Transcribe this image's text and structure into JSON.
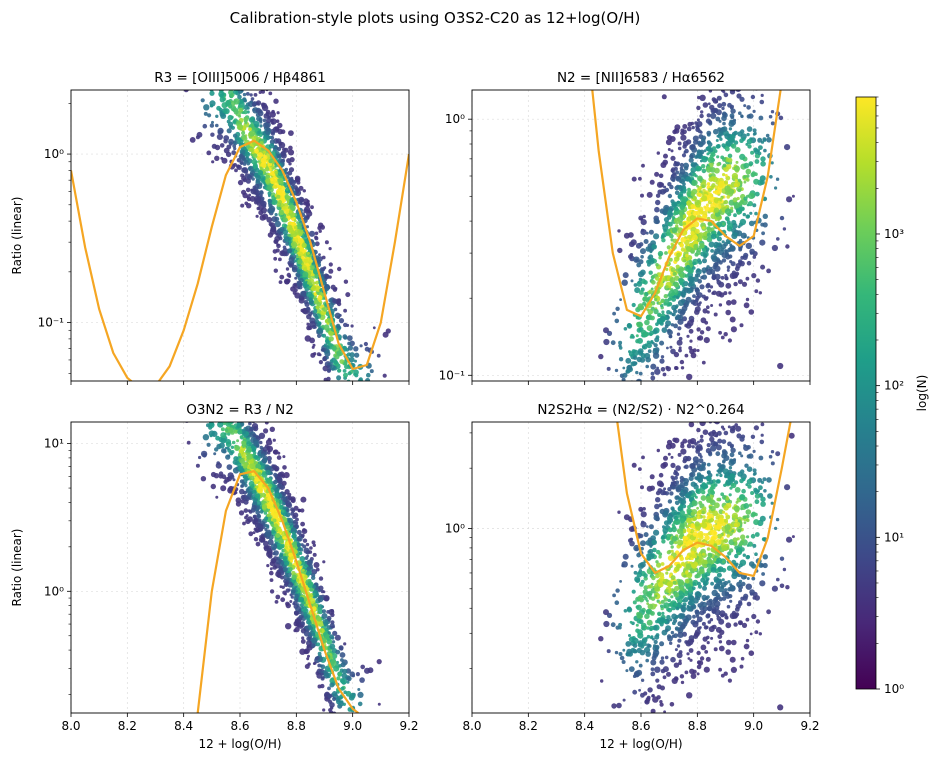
{
  "figure": {
    "title": "Calibration-style plots using O3S2-C20 as 12+log(O/H)"
  },
  "colors": {
    "fit_curve": "#f5a623",
    "grid": "#dddddd",
    "viridis": [
      "#440154",
      "#482878",
      "#3e4989",
      "#31688e",
      "#26828e",
      "#1f9e89",
      "#35b779",
      "#6ece58",
      "#b5de2b",
      "#fde725"
    ]
  },
  "colorbar": {
    "label": "log(N)",
    "scale": "log",
    "range": [
      1,
      8000
    ],
    "ticks": [
      {
        "v": 1,
        "label": "10⁰"
      },
      {
        "v": 10,
        "label": "10¹"
      },
      {
        "v": 100,
        "label": "10²"
      },
      {
        "v": 1000,
        "label": "10³"
      }
    ]
  },
  "chart_data": [
    {
      "type": "heatmap",
      "title": "R3 = [OIII]5006 / Hβ4861",
      "xlabel": "",
      "ylabel": "Ratio (linear)",
      "xlim": [
        8.0,
        9.2
      ],
      "ylim": [
        0.045,
        2.4
      ],
      "yscale": "log",
      "grid": true,
      "xticks": [],
      "yticks": [
        {
          "v": 0.1,
          "label": "10⁻¹"
        },
        {
          "v": 1,
          "label": "10⁰"
        }
      ],
      "fit_curve": {
        "x": [
          8.0,
          8.05,
          8.1,
          8.15,
          8.2,
          8.25,
          8.3,
          8.35,
          8.4,
          8.45,
          8.5,
          8.55,
          8.6,
          8.65,
          8.7,
          8.75,
          8.8,
          8.85,
          8.9,
          8.95,
          9.0,
          9.05,
          9.1,
          9.15,
          9.2
        ],
        "y": [
          0.8,
          0.28,
          0.12,
          0.066,
          0.047,
          0.04,
          0.042,
          0.055,
          0.09,
          0.17,
          0.37,
          0.75,
          1.1,
          1.2,
          1.05,
          0.8,
          0.52,
          0.3,
          0.15,
          0.075,
          0.053,
          0.056,
          0.1,
          0.3,
          1.0
        ]
      },
      "density": {
        "ridge_x": [
          8.55,
          8.6,
          8.65,
          8.7,
          8.75,
          8.8,
          8.85,
          8.9,
          8.95,
          9.0
        ],
        "ridge_y": [
          2.2,
          1.6,
          1.15,
          0.85,
          0.55,
          0.33,
          0.2,
          0.11,
          0.065,
          0.048
        ],
        "spread_dex": 0.55,
        "peak": 3000,
        "x_range": [
          8.45,
          9.08
        ]
      }
    },
    {
      "type": "heatmap",
      "title": "N2 = [NII]6583 / Hα6562",
      "xlabel": "",
      "ylabel": "",
      "xlim": [
        8.0,
        9.2
      ],
      "ylim": [
        0.095,
        1.3
      ],
      "yscale": "log",
      "grid": true,
      "xticks": [],
      "yticks": [
        {
          "v": 0.1,
          "label": "10⁻¹"
        },
        {
          "v": 1,
          "label": "10⁰"
        }
      ],
      "fit_curve": {
        "x": [
          8.4,
          8.45,
          8.5,
          8.55,
          8.6,
          8.65,
          8.7,
          8.75,
          8.8,
          8.85,
          8.9,
          8.95,
          9.0,
          9.05,
          9.1
        ],
        "y": [
          2.5,
          0.75,
          0.3,
          0.18,
          0.17,
          0.21,
          0.29,
          0.37,
          0.41,
          0.4,
          0.35,
          0.32,
          0.35,
          0.6,
          1.4
        ]
      },
      "density": {
        "ridge_x": [
          8.55,
          8.6,
          8.65,
          8.7,
          8.75,
          8.8,
          8.85,
          8.9,
          8.95,
          9.0
        ],
        "ridge_y": [
          0.14,
          0.17,
          0.21,
          0.27,
          0.34,
          0.42,
          0.5,
          0.55,
          0.58,
          0.6
        ],
        "spread_dex": 0.7,
        "peak": 4000,
        "x_range": [
          8.5,
          9.1
        ]
      }
    },
    {
      "type": "heatmap",
      "title": "O3N2 = R3 / N2",
      "xlabel": "12 + log(O/H)",
      "ylabel": "Ratio (linear)",
      "xlim": [
        8.0,
        9.2
      ],
      "ylim": [
        0.15,
        14
      ],
      "yscale": "log",
      "grid": true,
      "xticks": [
        {
          "v": 8.0,
          "label": "8.0"
        },
        {
          "v": 8.2,
          "label": "8.2"
        },
        {
          "v": 8.4,
          "label": "8.4"
        },
        {
          "v": 8.6,
          "label": "8.6"
        },
        {
          "v": 8.8,
          "label": "8.8"
        },
        {
          "v": 9.0,
          "label": "9.0"
        },
        {
          "v": 9.2,
          "label": "9.2"
        }
      ],
      "yticks": [
        {
          "v": 1,
          "label": "10⁰"
        },
        {
          "v": 10,
          "label": "10¹"
        }
      ],
      "fit_curve": {
        "x": [
          8.45,
          8.5,
          8.55,
          8.6,
          8.65,
          8.7,
          8.75,
          8.8,
          8.85,
          8.9,
          8.95,
          9.0,
          9.02
        ],
        "y": [
          0.15,
          1.0,
          3.5,
          6.2,
          6.5,
          5.0,
          3.0,
          1.6,
          0.8,
          0.4,
          0.22,
          0.16,
          0.15
        ]
      },
      "density": {
        "ridge_x": [
          8.55,
          8.6,
          8.65,
          8.7,
          8.75,
          8.8,
          8.85,
          8.9,
          8.95,
          9.0
        ],
        "ridge_y": [
          13,
          9.5,
          6.5,
          4.2,
          2.6,
          1.5,
          0.85,
          0.45,
          0.25,
          0.17
        ],
        "spread_dex": 0.6,
        "peak": 3000,
        "x_range": [
          8.45,
          9.05
        ]
      }
    },
    {
      "type": "heatmap",
      "title": "N2S2Hα = (N2/S2) · N2^0.264",
      "xlabel": "12 + log(O/H)",
      "ylabel": "",
      "xlim": [
        8.0,
        9.2
      ],
      "ylim": [
        0.12,
        3.4
      ],
      "yscale": "log",
      "grid": true,
      "xticks": [
        {
          "v": 8.0,
          "label": "8.0"
        },
        {
          "v": 8.2,
          "label": "8.2"
        },
        {
          "v": 8.4,
          "label": "8.4"
        },
        {
          "v": 8.6,
          "label": "8.6"
        },
        {
          "v": 8.8,
          "label": "8.8"
        },
        {
          "v": 9.0,
          "label": "9.0"
        },
        {
          "v": 9.2,
          "label": "9.2"
        }
      ],
      "yticks": [
        {
          "v": 1,
          "label": "10⁰"
        }
      ],
      "fit_curve": {
        "x": [
          8.5,
          8.55,
          8.6,
          8.65,
          8.7,
          8.75,
          8.8,
          8.85,
          8.9,
          8.95,
          9.0,
          9.05,
          9.1,
          9.14
        ],
        "y": [
          5.0,
          1.5,
          0.75,
          0.6,
          0.65,
          0.78,
          0.85,
          0.82,
          0.72,
          0.6,
          0.58,
          0.9,
          2.0,
          4.0
        ]
      },
      "density": {
        "ridge_x": [
          8.55,
          8.6,
          8.65,
          8.7,
          8.75,
          8.8,
          8.85,
          8.9,
          8.95,
          9.0
        ],
        "ridge_y": [
          0.35,
          0.4,
          0.5,
          0.62,
          0.75,
          0.9,
          1.0,
          1.05,
          1.1,
          1.15
        ],
        "spread_dex": 0.9,
        "peak": 5000,
        "x_range": [
          8.5,
          9.1
        ]
      }
    }
  ]
}
